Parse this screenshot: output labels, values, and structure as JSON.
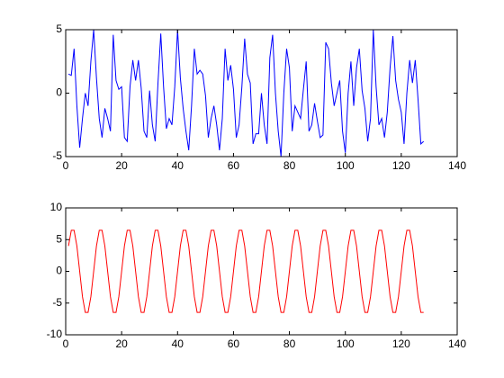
{
  "chart_data": [
    {
      "type": "line",
      "color": "#0000ff",
      "x": [
        1,
        2,
        3,
        4,
        5,
        6,
        7,
        8,
        9,
        10,
        11,
        12,
        13,
        14,
        15,
        16,
        17,
        18,
        19,
        20,
        21,
        22,
        23,
        24,
        25,
        26,
        27,
        28,
        29,
        30,
        31,
        32,
        33,
        34,
        35,
        36,
        37,
        38,
        39,
        40,
        41,
        42,
        43,
        44,
        45,
        46,
        47,
        48,
        49,
        50,
        51,
        52,
        53,
        54,
        55,
        56,
        57,
        58,
        59,
        60,
        61,
        62,
        63,
        64,
        65,
        66,
        67,
        68,
        69,
        70,
        71,
        72,
        73,
        74,
        75,
        76,
        77,
        78,
        79,
        80,
        81,
        82,
        83,
        84,
        85,
        86,
        87,
        88,
        89,
        90,
        91,
        92,
        93,
        94,
        95,
        96,
        97,
        98,
        99,
        100,
        101,
        102,
        103,
        104,
        105,
        106,
        107,
        108,
        109,
        110,
        111,
        112,
        113,
        114,
        115,
        116,
        117,
        118,
        119,
        120,
        121,
        122,
        123,
        124,
        125,
        126,
        127,
        128
      ],
      "values": [
        1.5,
        1.4,
        3.5,
        -1,
        -4.3,
        -2,
        0,
        -1,
        2.5,
        5,
        1.2,
        -2,
        -3.5,
        -1.2,
        -2,
        -3,
        4.6,
        1,
        0.3,
        0.5,
        -3.5,
        -3.8,
        0.5,
        2.6,
        1,
        2.6,
        0.4,
        -3,
        -3.5,
        0.2,
        -2.5,
        -3.8,
        0.8,
        4.7,
        0.5,
        -2.8,
        -2,
        -2.5,
        0.5,
        5,
        1.2,
        -1.2,
        -3,
        -4.5,
        -1,
        3.5,
        1.5,
        1.8,
        1.5,
        -0.2,
        -3.5,
        -2,
        -1,
        -2.5,
        -4.5,
        -2,
        3.5,
        1,
        2.2,
        0.3,
        -3.5,
        -2.5,
        0.5,
        4.3,
        1.5,
        0.8,
        -4,
        -3.2,
        -3.2,
        0,
        -2.5,
        -4,
        2.8,
        4.6,
        0,
        -3,
        -5,
        0,
        3.5,
        2,
        -3,
        -1,
        -1.5,
        -2,
        0.3,
        2.5,
        -3,
        -2.5,
        -0.8,
        -2.2,
        -3.5,
        -3.3,
        4,
        3.5,
        0.8,
        -1,
        0,
        1,
        -3,
        -4.7,
        0,
        2.5,
        -1,
        2,
        3.5,
        0.2,
        -1.2,
        -3.8,
        -2,
        5,
        0.5,
        -2.5,
        -2,
        -3.5,
        -1.5,
        2,
        4.5,
        1,
        -0.5,
        -1.5,
        -4,
        0,
        2.6,
        0.8,
        2.6,
        -0.5,
        -4,
        -3.8
      ],
      "xlim": [
        0,
        140
      ],
      "xticks": [
        0,
        20,
        40,
        60,
        80,
        100,
        120,
        140
      ],
      "ylim": [
        -5,
        5
      ],
      "yticks": [
        -5,
        0,
        5
      ]
    },
    {
      "type": "line",
      "color": "#ff0000",
      "x": [
        1,
        2,
        3,
        4,
        5,
        6,
        7,
        8,
        9,
        10,
        11,
        12,
        13,
        14,
        15,
        16,
        17,
        18,
        19,
        20,
        21,
        22,
        23,
        24,
        25,
        26,
        27,
        28,
        29,
        30,
        31,
        32,
        33,
        34,
        35,
        36,
        37,
        38,
        39,
        40,
        41,
        42,
        43,
        44,
        45,
        46,
        47,
        48,
        49,
        50,
        51,
        52,
        53,
        54,
        55,
        56,
        57,
        58,
        59,
        60,
        61,
        62,
        63,
        64,
        65,
        66,
        67,
        68,
        69,
        70,
        71,
        72,
        73,
        74,
        75,
        76,
        77,
        78,
        79,
        80,
        81,
        82,
        83,
        84,
        85,
        86,
        87,
        88,
        89,
        90,
        91,
        92,
        93,
        94,
        95,
        96,
        97,
        98,
        99,
        100,
        101,
        102,
        103,
        104,
        105,
        106,
        107,
        108,
        109,
        110,
        111,
        112,
        113,
        114,
        115,
        116,
        117,
        118,
        119,
        120,
        121,
        122,
        123,
        124,
        125,
        126,
        127,
        128
      ],
      "values": [
        4,
        6.47,
        6.47,
        4,
        0,
        -4,
        -6.47,
        -6.47,
        -4,
        0,
        4,
        6.47,
        6.47,
        4,
        0,
        -4,
        -6.47,
        -6.47,
        -4,
        0,
        4,
        6.47,
        6.47,
        4,
        0,
        -4,
        -6.47,
        -6.47,
        -4,
        0,
        4,
        6.47,
        6.47,
        4,
        0,
        -4,
        -6.47,
        -6.47,
        -4,
        0,
        4,
        6.47,
        6.47,
        4,
        0,
        -4,
        -6.47,
        -6.47,
        -4,
        0,
        4,
        6.47,
        6.47,
        4,
        0,
        -4,
        -6.47,
        -6.47,
        -4,
        0,
        4,
        6.47,
        6.47,
        4,
        0,
        -4,
        -6.47,
        -6.47,
        -4,
        0,
        4,
        6.47,
        6.47,
        4,
        0,
        -4,
        -6.47,
        -6.47,
        -4,
        0,
        4,
        6.47,
        6.47,
        4,
        0,
        -4,
        -6.47,
        -6.47,
        -4,
        0,
        4,
        6.47,
        6.47,
        4,
        0,
        -4,
        -6.47,
        -6.47,
        -4,
        0,
        4,
        6.47,
        6.47,
        4,
        0,
        -4,
        -6.47,
        -6.47,
        -4,
        0,
        4,
        6.47,
        6.47,
        4,
        0,
        -4,
        -6.47,
        -6.47,
        -4,
        0,
        4,
        6.47,
        6.47,
        4,
        0,
        -4,
        -6.47,
        -6.47
      ],
      "xlim": [
        0,
        140
      ],
      "xticks": [
        0,
        20,
        40,
        60,
        80,
        100,
        120,
        140
      ],
      "ylim": [
        -10,
        10
      ],
      "yticks": [
        -10,
        -5,
        0,
        5,
        10
      ]
    }
  ]
}
